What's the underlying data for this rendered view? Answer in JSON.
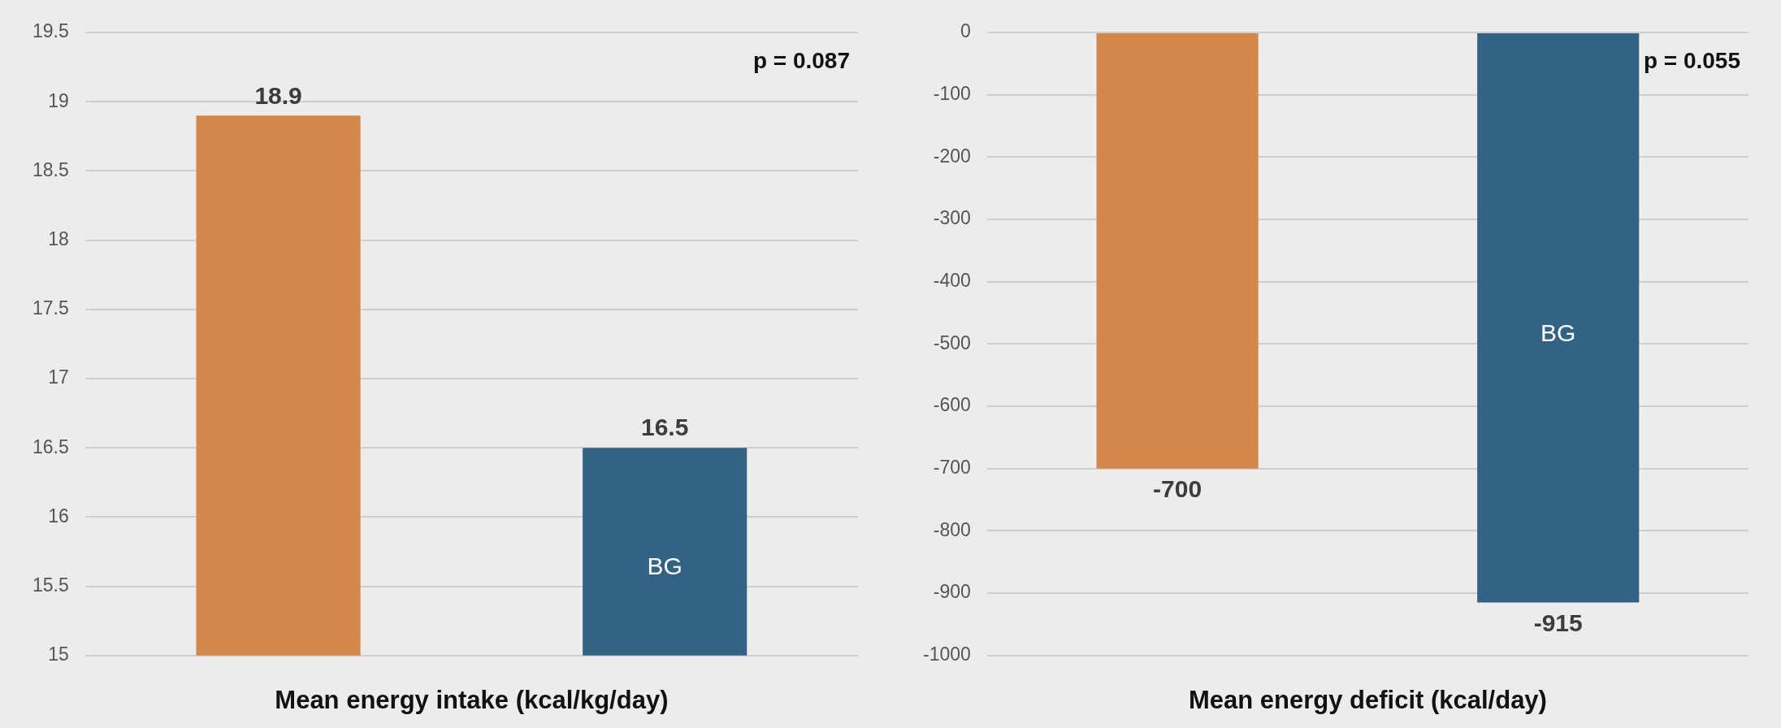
{
  "chart_data": [
    {
      "type": "bar",
      "xlabel": "Mean energy intake (kcal/kg/day)",
      "categories": [
        null,
        null
      ],
      "values": [
        18.9,
        16.5
      ],
      "colors": [
        "#d4874b",
        "#336384"
      ],
      "ylim": [
        15,
        19.5
      ],
      "yticks": [
        15,
        15.5,
        16,
        16.5,
        17,
        17.5,
        18,
        18.5,
        19,
        19.5
      ],
      "grid": "y",
      "legend": false,
      "tick_labels": "y",
      "data_labels": true,
      "annotations": [
        "p = 0.087",
        "BG"
      ]
    },
    {
      "type": "bar",
      "xlabel": "Mean energy deficit (kcal/day)",
      "categories": [
        null,
        null
      ],
      "values": [
        -700,
        -915
      ],
      "colors": [
        "#d4874b",
        "#336384"
      ],
      "ylim": [
        -1000,
        0
      ],
      "yticks": [
        -1000,
        -900,
        -800,
        -700,
        -600,
        -500,
        -400,
        -300,
        -200,
        -100,
        0
      ],
      "grid": "y",
      "legend": false,
      "tick_labels": "y",
      "data_labels": true,
      "annotations": [
        "p = 0.055",
        "BG"
      ]
    }
  ]
}
